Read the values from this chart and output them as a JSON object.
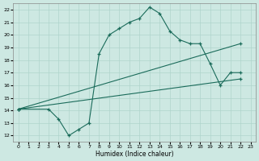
{
  "xlabel": "Humidex (Indice chaleur)",
  "bg_color": "#cde8e2",
  "grid_color": "#afd4cc",
  "line_color": "#1a6b5a",
  "xlim": [
    -0.5,
    23.5
  ],
  "ylim": [
    11.5,
    22.5
  ],
  "xticks": [
    0,
    1,
    2,
    3,
    4,
    5,
    6,
    7,
    8,
    9,
    10,
    11,
    12,
    13,
    14,
    15,
    16,
    17,
    18,
    19,
    20,
    21,
    22,
    23
  ],
  "yticks": [
    12,
    13,
    14,
    15,
    16,
    17,
    18,
    19,
    20,
    21,
    22
  ],
  "curve1_x": [
    0,
    3,
    4,
    5,
    6,
    7,
    8,
    9,
    10,
    11,
    12,
    13,
    14,
    15,
    16,
    17,
    18,
    19,
    20,
    21,
    22
  ],
  "curve1_y": [
    14.1,
    14.1,
    13.3,
    12.0,
    12.5,
    13.0,
    18.5,
    20.0,
    20.5,
    21.0,
    21.3,
    22.2,
    21.7,
    20.3,
    19.6,
    19.3,
    19.3,
    17.7,
    16.0,
    17.0,
    17.0
  ],
  "line1_x": [
    0,
    22
  ],
  "line1_y": [
    14.1,
    19.3
  ],
  "line2_x": [
    0,
    22
  ],
  "line2_y": [
    14.1,
    16.5
  ]
}
